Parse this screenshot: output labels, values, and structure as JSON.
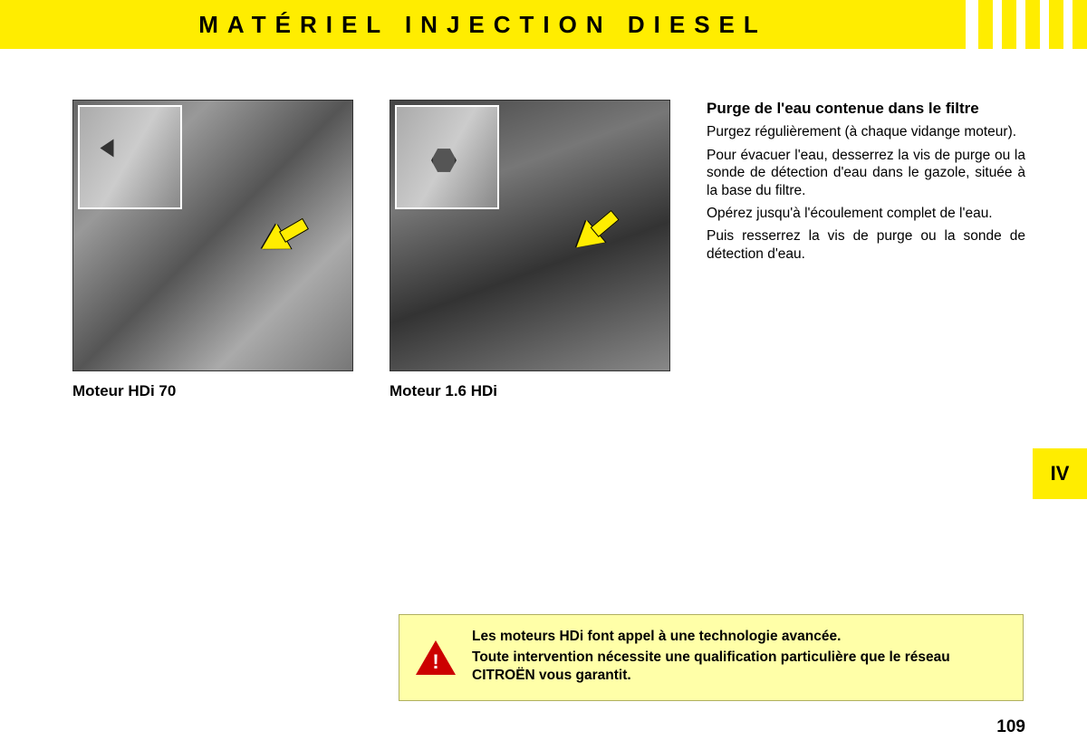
{
  "header": {
    "title": "MATÉRIEL INJECTION DIESEL"
  },
  "images": {
    "left": {
      "caption": "Moteur HDi 70"
    },
    "right": {
      "caption": "Moteur 1.6 HDi"
    }
  },
  "section": {
    "title": "Purge de l'eau contenue dans le filtre",
    "paragraphs": [
      "Purgez régulièrement (à chaque vidange moteur).",
      "Pour évacuer l'eau, desserrez la vis de purge ou la sonde de détection d'eau dans le gazole, située à la base du filtre.",
      "Opérez jusqu'à l'écoulement complet de l'eau.",
      "Puis resserrez la vis de purge ou la sonde de détection d'eau."
    ]
  },
  "tab": {
    "label": "IV"
  },
  "warning": {
    "lines": [
      "Les moteurs HDi font appel à une technologie avancée.",
      "Toute intervention nécessite une qualification particulière que le réseau CITROËN vous garantit."
    ]
  },
  "page": {
    "number": "109"
  },
  "colors": {
    "yellow": "#ffed00",
    "warning_bg": "#ffffa8",
    "warning_red": "#cc0000"
  }
}
